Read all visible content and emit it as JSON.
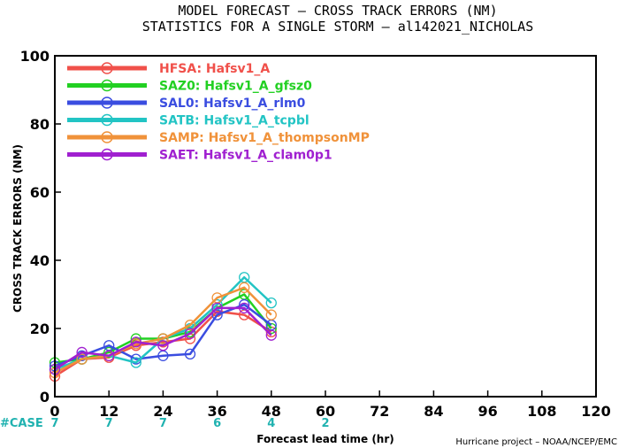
{
  "chart_data": {
    "type": "line",
    "title": "MODEL FORECAST – CROSS TRACK ERRORS (NM)",
    "subtitle": "STATISTICS FOR A SINGLE STORM – al142021_NICHOLAS",
    "xlabel": "Forecast lead time (hr)",
    "ylabel": "CROSS TRACK ERRORS (NM)",
    "xlim": [
      0,
      120
    ],
    "ylim": [
      0,
      100
    ],
    "xticks": [
      "0",
      "12",
      "24",
      "36",
      "48",
      "60",
      "72",
      "84",
      "96",
      "108",
      "120"
    ],
    "yticks": [
      "0",
      "20",
      "40",
      "60",
      "80",
      "100"
    ],
    "grid": false,
    "legend_position": "top-left",
    "case_label": "#CASE",
    "cases": [
      {
        "x": 0,
        "n": "7"
      },
      {
        "x": 12,
        "n": "7"
      },
      {
        "x": 24,
        "n": "7"
      },
      {
        "x": 36,
        "n": "6"
      },
      {
        "x": 48,
        "n": "4"
      },
      {
        "x": 60,
        "n": "2"
      }
    ],
    "credit": "Hurricane project – NOAA/NCEP/EMC",
    "x": [
      0,
      6,
      12,
      18,
      24,
      30,
      36,
      42,
      48
    ],
    "series": [
      {
        "name": "HFSA:  Hafsv1_A",
        "color": "#f0504a",
        "values": [
          6,
          11,
          11.5,
          15,
          16,
          17,
          25,
          24,
          19
        ]
      },
      {
        "name": "SAZ0:  Hafsv1_A_gfsz0",
        "color": "#22d022",
        "values": [
          10,
          11,
          13,
          17,
          17,
          19,
          26,
          30,
          20
        ]
      },
      {
        "name": "SAL0:  Hafsv1_A_rlm0",
        "color": "#3a4de0",
        "values": [
          9,
          12,
          15,
          11,
          12,
          12.5,
          24,
          27,
          21
        ]
      },
      {
        "name": "SATB:  Hafsv1_A_tcpbl",
        "color": "#22c4c4",
        "values": [
          8,
          11,
          12,
          10,
          17,
          20,
          27,
          35,
          27.5
        ]
      },
      {
        "name": "SAMP:  Hafsv1_A_thompsonMP",
        "color": "#f0923a",
        "values": [
          7,
          11,
          12,
          15.5,
          17,
          21,
          29,
          32,
          24
        ]
      },
      {
        "name": "SAET:  Hafsv1_A_clam0p1",
        "color": "#a020d0",
        "values": [
          8,
          13,
          12,
          16,
          15,
          18.5,
          26,
          26,
          18
        ]
      }
    ]
  }
}
